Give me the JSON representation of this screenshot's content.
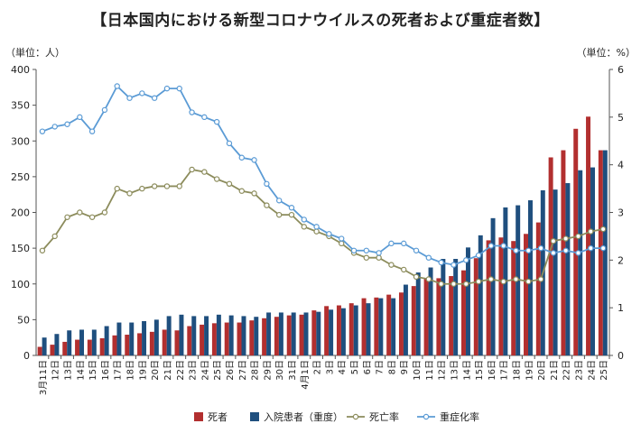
{
  "chart_data": {
    "type": "bar",
    "title": "【日本国内における新型コロナウイルスの死者および重症者数】",
    "left_axis_unit": "（単位：人）",
    "right_axis_unit": "（単位：%）",
    "ylim": [
      0,
      400
    ],
    "y_ticks": [
      0,
      50,
      100,
      150,
      200,
      250,
      300,
      350,
      400
    ],
    "y2lim": [
      0,
      6
    ],
    "y2_ticks": [
      0,
      1,
      2,
      3,
      4,
      5,
      6
    ],
    "grid": false,
    "legend_position": "bottom",
    "categories": [
      "3月11日",
      "12日",
      "13日",
      "14日",
      "15日",
      "16日",
      "17日",
      "18日",
      "19日",
      "20日",
      "21日",
      "22日",
      "23日",
      "24日",
      "25日",
      "26日",
      "27日",
      "28日",
      "29日",
      "30日",
      "31日",
      "4月1日",
      "2日",
      "3日",
      "4日",
      "5日",
      "6日",
      "7日",
      "8日",
      "9日",
      "10日",
      "11日",
      "12日",
      "13日",
      "14日",
      "15日",
      "16日",
      "17日",
      "18日",
      "19日",
      "20日",
      "21日",
      "22日",
      "23日",
      "24日",
      "25日"
    ],
    "series": [
      {
        "name": "死者",
        "kind": "bar",
        "axis": "left",
        "color": "#b22f2f",
        "values": [
          12,
          15,
          19,
          22,
          22,
          24,
          28,
          29,
          31,
          33,
          36,
          35,
          41,
          43,
          45,
          46,
          46,
          49,
          52,
          54,
          56,
          57,
          63,
          69,
          70,
          73,
          80,
          81,
          85,
          88,
          97,
          107,
          108,
          111,
          119,
          136,
          161,
          165,
          160,
          170,
          186,
          277,
          287,
          317,
          334,
          287
        ]
      },
      {
        "name": "入院患者（重度）",
        "kind": "bar",
        "axis": "left",
        "color": "#1f4f7e",
        "values": [
          25,
          30,
          35,
          36,
          36,
          41,
          46,
          46,
          48,
          50,
          55,
          57,
          55,
          55,
          57,
          56,
          55,
          54,
          60,
          60,
          60,
          60,
          61,
          64,
          66,
          70,
          73,
          80,
          80,
          99,
          116,
          123,
          135,
          135,
          151,
          168,
          192,
          207,
          210,
          217,
          231,
          232,
          241,
          259,
          263,
          287
        ]
      },
      {
        "name": "死亡率",
        "kind": "line",
        "axis": "right",
        "color": "#8c8c5c",
        "values": [
          2.2,
          2.5,
          2.9,
          3.0,
          2.9,
          3.0,
          3.5,
          3.4,
          3.5,
          3.55,
          3.55,
          3.55,
          3.9,
          3.85,
          3.7,
          3.6,
          3.45,
          3.4,
          3.15,
          2.95,
          2.95,
          2.7,
          2.6,
          2.5,
          2.35,
          2.15,
          2.05,
          2.05,
          1.9,
          1.8,
          1.65,
          1.6,
          1.5,
          1.5,
          1.5,
          1.55,
          1.6,
          1.55,
          1.6,
          1.55,
          1.6,
          2.4,
          2.45,
          2.5,
          2.6,
          2.65
        ]
      },
      {
        "name": "重症化率",
        "kind": "line",
        "axis": "right",
        "color": "#5b9bd5",
        "values": [
          4.7,
          4.8,
          4.85,
          5.0,
          4.7,
          5.15,
          5.65,
          5.4,
          5.5,
          5.4,
          5.6,
          5.6,
          5.1,
          5.0,
          4.9,
          4.45,
          4.15,
          4.1,
          3.6,
          3.25,
          3.1,
          2.85,
          2.7,
          2.55,
          2.45,
          2.2,
          2.2,
          2.15,
          2.35,
          2.35,
          2.2,
          2.05,
          1.95,
          1.9,
          2.0,
          2.1,
          2.3,
          2.3,
          2.2,
          2.2,
          2.25,
          2.15,
          2.2,
          2.15,
          2.25,
          2.25
        ]
      }
    ]
  }
}
